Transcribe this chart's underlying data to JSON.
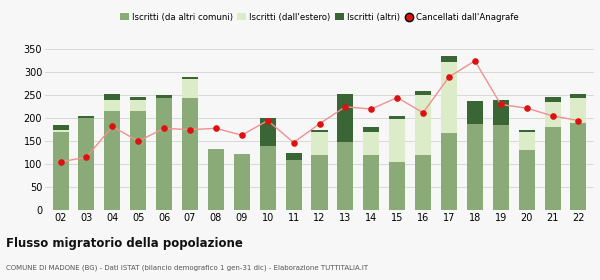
{
  "years": [
    "02",
    "03",
    "04",
    "05",
    "06",
    "07",
    "08",
    "09",
    "10",
    "11",
    "12",
    "13",
    "14",
    "15",
    "16",
    "17",
    "18",
    "19",
    "20",
    "21",
    "22"
  ],
  "iscritti_comuni": [
    170,
    200,
    215,
    215,
    245,
    245,
    132,
    122,
    140,
    110,
    120,
    148,
    120,
    104,
    120,
    168,
    188,
    185,
    130,
    180,
    190
  ],
  "iscritti_estero": [
    5,
    0,
    25,
    25,
    0,
    40,
    0,
    0,
    0,
    0,
    50,
    0,
    50,
    95,
    130,
    155,
    0,
    0,
    40,
    55,
    55
  ],
  "iscritti_altri": [
    10,
    5,
    12,
    7,
    5,
    5,
    0,
    0,
    60,
    15,
    5,
    105,
    10,
    5,
    10,
    12,
    50,
    55,
    5,
    12,
    8
  ],
  "cancellati": [
    105,
    115,
    182,
    150,
    178,
    175,
    178,
    163,
    195,
    147,
    188,
    225,
    220,
    245,
    212,
    290,
    325,
    230,
    222,
    205,
    195
  ],
  "color_comuni": "#8aab78",
  "color_estero": "#ddecc8",
  "color_altri": "#3a6635",
  "color_cancellati": "#dd1111",
  "color_cancellati_line": "#f09090",
  "ylim": [
    0,
    360
  ],
  "yticks": [
    0,
    50,
    100,
    150,
    200,
    250,
    300,
    350
  ],
  "title": "Flusso migratorio della popolazione",
  "subtitle": "COMUNE DI MADONE (BG) - Dati ISTAT (bilancio demografico 1 gen-31 dic) - Elaborazione TUTTITALIA.IT",
  "legend_labels": [
    "Iscritti (da altri comuni)",
    "Iscritti (dall'estero)",
    "Iscritti (altri)",
    "Cancellati dall'Anagrafe"
  ],
  "bg_color": "#f7f7f7",
  "grid_color": "#d8d8d8"
}
